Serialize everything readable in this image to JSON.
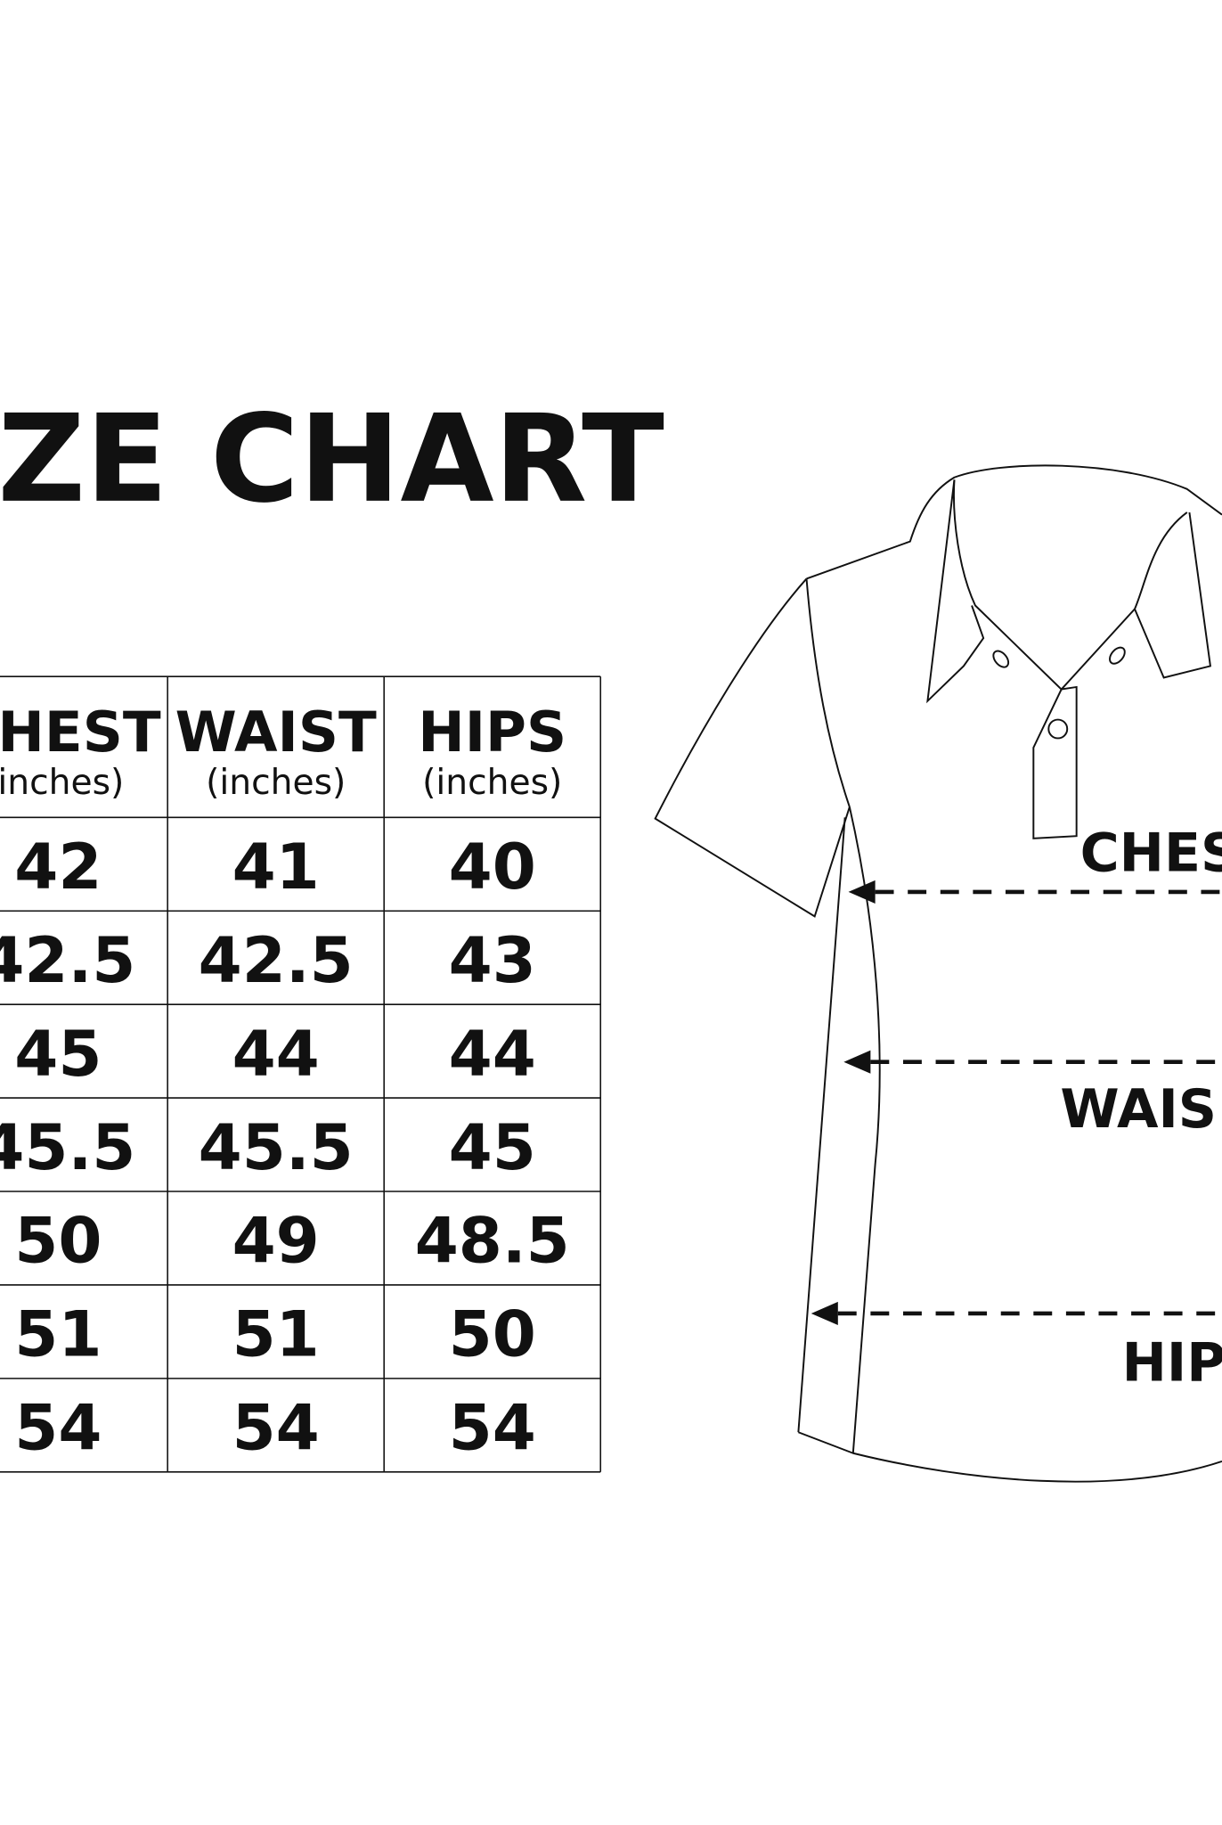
{
  "title": "ZE CHART",
  "table": {
    "headers": [
      {
        "name": "HEST",
        "unit": "inches)"
      },
      {
        "name": "WAIST",
        "unit": "(inches)"
      },
      {
        "name": "HIPS",
        "unit": "(inches)"
      }
    ],
    "rows": [
      [
        "42",
        "41",
        "40"
      ],
      [
        "42.5",
        "42.5",
        "43"
      ],
      [
        "45",
        "44",
        "44"
      ],
      [
        "45.5",
        "45.5",
        "45"
      ],
      [
        "50",
        "49",
        "48.5"
      ],
      [
        "51",
        "51",
        "50"
      ],
      [
        "54",
        "54",
        "54"
      ]
    ]
  },
  "diagram": {
    "labels": [
      "CHES",
      "WAIS",
      "HIP"
    ]
  }
}
